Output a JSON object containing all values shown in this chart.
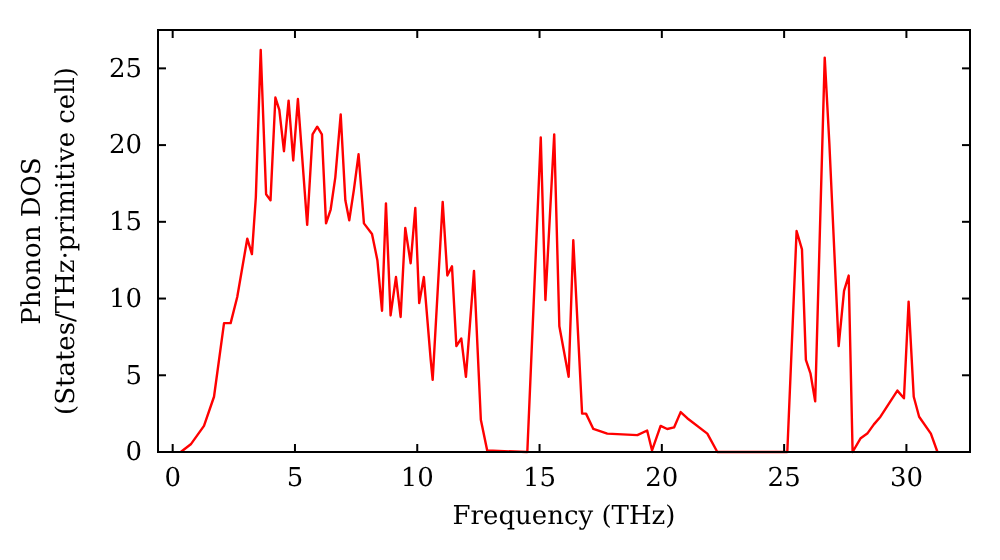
{
  "chart_data": {
    "type": "line",
    "xlabel": "Frequency (THz)",
    "ylabel": "Phonon DOS\n(States/THz·primitive cell)",
    "xlim": [
      -0.6,
      32.6
    ],
    "ylim": [
      0,
      27.5
    ],
    "xticks": [
      0,
      5,
      10,
      15,
      20,
      25,
      30
    ],
    "yticks": [
      0,
      5,
      10,
      15,
      20,
      25
    ],
    "grid": false,
    "marker": "none",
    "line_style": "solid",
    "series": [
      {
        "color": "#ff0000",
        "x": [
          0.33,
          0.74,
          1.28,
          1.69,
          2.1,
          2.37,
          2.64,
          3.05,
          3.24,
          3.4,
          3.6,
          3.82,
          4.0,
          4.2,
          4.36,
          4.55,
          4.74,
          4.93,
          5.12,
          5.5,
          5.72,
          5.91,
          6.1,
          6.27,
          6.46,
          6.65,
          6.87,
          7.06,
          7.22,
          7.41,
          7.6,
          7.82,
          8.15,
          8.37,
          8.56,
          8.72,
          8.91,
          9.13,
          9.32,
          9.51,
          9.73,
          9.92,
          10.08,
          10.27,
          10.55,
          10.63,
          11.04,
          11.23,
          11.42,
          11.6,
          11.8,
          11.99,
          12.32,
          12.6,
          12.86,
          14.5,
          15.05,
          15.24,
          15.6,
          15.81,
          16.19,
          16.38,
          16.74,
          16.9,
          17.2,
          17.77,
          19.0,
          19.4,
          19.6,
          19.95,
          20.22,
          20.5,
          20.77,
          21.04,
          21.86,
          22.27,
          25.13,
          25.51,
          25.73,
          25.89,
          26.08,
          26.27,
          26.66,
          26.85,
          27.23,
          27.45,
          27.64,
          27.8,
          28.13,
          28.4,
          28.67,
          28.94,
          29.63,
          29.9,
          30.09,
          30.3,
          30.52,
          31.0,
          31.27
        ],
        "values": [
          0,
          0.5,
          1.7,
          3.6,
          8.4,
          8.4,
          10.1,
          13.9,
          12.9,
          16.6,
          26.2,
          16.8,
          16.4,
          23.1,
          22.3,
          19.6,
          22.9,
          19.0,
          23.0,
          14.8,
          20.7,
          21.2,
          20.7,
          14.9,
          15.8,
          17.9,
          22.0,
          16.4,
          15.1,
          17.1,
          19.4,
          14.9,
          14.2,
          12.5,
          9.2,
          16.2,
          8.9,
          11.4,
          8.8,
          14.6,
          12.3,
          15.9,
          9.7,
          11.4,
          6.0,
          4.7,
          16.3,
          11.5,
          12.1,
          6.9,
          7.4,
          4.9,
          11.8,
          2.1,
          0.1,
          0,
          20.5,
          9.9,
          20.7,
          8.2,
          4.9,
          13.8,
          2.5,
          2.5,
          1.5,
          1.2,
          1.1,
          1.4,
          0.1,
          1.7,
          1.5,
          1.6,
          2.6,
          2.2,
          1.2,
          0,
          0,
          14.4,
          13.2,
          6.0,
          5.1,
          3.3,
          25.7,
          20.1,
          6.9,
          10.5,
          11.5,
          0,
          0.9,
          1.2,
          1.8,
          2.3,
          4.0,
          3.5,
          9.8,
          3.6,
          2.3,
          1.2,
          0
        ]
      }
    ]
  }
}
